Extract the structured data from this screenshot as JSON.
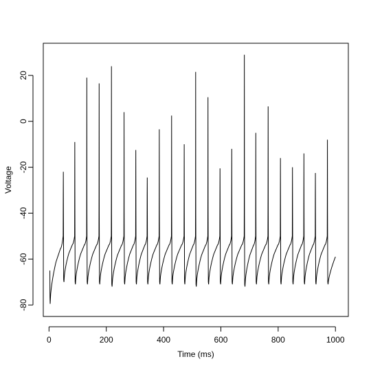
{
  "chart_data": {
    "type": "line",
    "title": "",
    "xlabel": "Time (ms)",
    "ylabel": "Voltage",
    "xlim": [
      -20,
      1045
    ],
    "ylim": [
      -85,
      34
    ],
    "xticks": [
      0,
      200,
      400,
      600,
      800,
      1000
    ],
    "yticks": [
      -80,
      -60,
      -40,
      -20,
      0,
      20
    ],
    "grid": false,
    "legend": "none",
    "line_color": "#000000",
    "initial_spike": {
      "t": 3,
      "peak": -65,
      "trough": -79.5
    },
    "rest_level": -59,
    "end_time": 1000,
    "spikes": [
      {
        "t": 50,
        "peak": -22,
        "trough": -70
      },
      {
        "t": 90,
        "peak": -9,
        "trough": -71
      },
      {
        "t": 132,
        "peak": 19,
        "trough": -71
      },
      {
        "t": 175,
        "peak": 16.5,
        "trough": -71
      },
      {
        "t": 218,
        "peak": 24,
        "trough": -72
      },
      {
        "t": 262,
        "peak": 4,
        "trough": -71
      },
      {
        "t": 303,
        "peak": -12.5,
        "trough": -71
      },
      {
        "t": 343,
        "peak": -24.5,
        "trough": -71
      },
      {
        "t": 385,
        "peak": -3.5,
        "trough": -71
      },
      {
        "t": 428,
        "peak": 2.5,
        "trough": -71
      },
      {
        "t": 472,
        "peak": -10,
        "trough": -71
      },
      {
        "t": 512,
        "peak": 21.5,
        "trough": -72
      },
      {
        "t": 555,
        "peak": 10.5,
        "trough": -71
      },
      {
        "t": 597,
        "peak": -20.5,
        "trough": -71
      },
      {
        "t": 638,
        "peak": -12,
        "trough": -71
      },
      {
        "t": 682,
        "peak": 29,
        "trough": -72
      },
      {
        "t": 722,
        "peak": -5,
        "trough": -71
      },
      {
        "t": 765,
        "peak": 6.5,
        "trough": -71
      },
      {
        "t": 808,
        "peak": -16,
        "trough": -71
      },
      {
        "t": 850,
        "peak": -20,
        "trough": -71
      },
      {
        "t": 890,
        "peak": -14,
        "trough": -71
      },
      {
        "t": 930,
        "peak": -22.5,
        "trough": -71
      },
      {
        "t": 972,
        "peak": -8,
        "trough": -71
      }
    ]
  }
}
